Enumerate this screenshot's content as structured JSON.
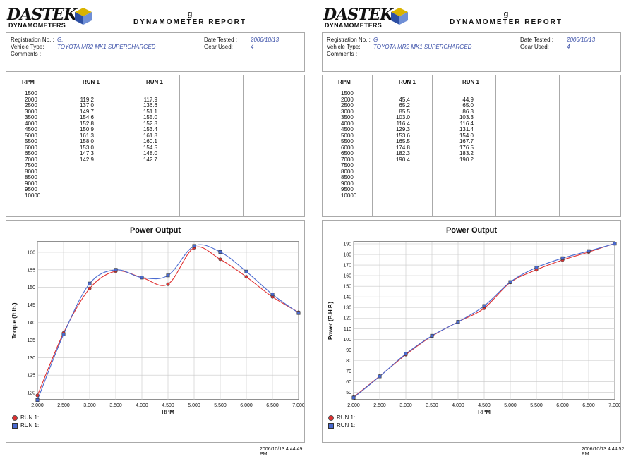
{
  "pages": [
    {
      "brand": {
        "word": "DASTEK",
        "sub": "DYNAMOMETERS"
      },
      "report": {
        "g": "g",
        "title": "DYNAMOMETER REPORT"
      },
      "info": {
        "registration_label": "Registration No. :",
        "registration_value": "G.",
        "vehicle_label": "Vehicle Type:",
        "vehicle_value": "TOYOTA MR2 MK1 SUPERCHARGED",
        "comments_label": "Comments :",
        "date_label": "Date Tested :",
        "date_value": "2006/10/13",
        "gear_label": "Gear Used:",
        "gear_value": "4"
      },
      "table": {
        "headers": [
          "RPM",
          "RUN 1",
          "RUN 1"
        ],
        "rpm": [
          "1500",
          "2000",
          "2500",
          "3000",
          "3500",
          "4000",
          "4500",
          "5000",
          "5500",
          "6000",
          "6500",
          "7000",
          "7500",
          "8000",
          "8500",
          "9000",
          "9500",
          "10000"
        ],
        "run1a": [
          "",
          "119.2",
          "137.0",
          "149.7",
          "154.6",
          "152.8",
          "150.9",
          "161.3",
          "158.0",
          "153.0",
          "147.3",
          "142.9"
        ],
        "run1b": [
          "",
          "117.9",
          "136.6",
          "151.1",
          "155.0",
          "152.8",
          "153.4",
          "161.8",
          "160.1",
          "154.5",
          "148.0",
          "142.7"
        ]
      },
      "chart_data": {
        "type": "line",
        "title": "Power Output",
        "xlabel": "RPM",
        "ylabel": "Torque (ft.lb.)",
        "x": [
          2000,
          2500,
          3000,
          3500,
          4000,
          4500,
          5000,
          5500,
          6000,
          6500,
          7000
        ],
        "x_tick_labels": [
          "2,000",
          "2,500",
          "3,000",
          "3,500",
          "4,000",
          "4,500",
          "5,000",
          "5,500",
          "6,000",
          "6,500",
          "7,000"
        ],
        "xlim": [
          2000,
          7000
        ],
        "ylim": [
          118,
          163
        ],
        "y_ticks": [
          120,
          125,
          130,
          135,
          140,
          145,
          150,
          155,
          160
        ],
        "grid": true,
        "legend": "bottom-left",
        "series": [
          {
            "name": "RUN 1:",
            "color": "#e03030",
            "marker": "circle",
            "values": [
              119.2,
              137.0,
              149.7,
              154.6,
              152.8,
              150.9,
              161.3,
              158.0,
              153.0,
              147.3,
              142.9
            ]
          },
          {
            "name": "RUN 1:",
            "color": "#4a6ad0",
            "marker": "square",
            "values": [
              117.9,
              136.6,
              151.1,
              155.0,
              152.8,
              153.4,
              161.8,
              160.1,
              154.5,
              148.0,
              142.7
            ]
          }
        ]
      },
      "timestamp": "2006/10/13 4:44:49 PM"
    },
    {
      "brand": {
        "word": "DASTEK",
        "sub": "DYNAMOMETERS"
      },
      "report": {
        "g": "g",
        "title": "DYNAMOMETER REPORT"
      },
      "info": {
        "registration_label": "Registration No. :",
        "registration_value": "G",
        "vehicle_label": "Vehicle Type:",
        "vehicle_value": "TOYOTA MR2 MK1 SUPERCHARGED",
        "comments_label": "Comments :",
        "date_label": "Date Tested :",
        "date_value": "2006/10/13",
        "gear_label": "Gear Used:",
        "gear_value": "4"
      },
      "table": {
        "headers": [
          "RPM",
          "RUN 1",
          "RUN 1"
        ],
        "rpm": [
          "1500",
          "2000",
          "2500",
          "3000",
          "3500",
          "4000",
          "4500",
          "5000",
          "5500",
          "6000",
          "6500",
          "7000",
          "7500",
          "8000",
          "8500",
          "9000",
          "9500",
          "10000"
        ],
        "run1a": [
          "",
          "45.4",
          "65.2",
          "85.5",
          "103.0",
          "116.4",
          "129.3",
          "153.6",
          "165.5",
          "174.8",
          "182.3",
          "190.4"
        ],
        "run1b": [
          "",
          "44.9",
          "65.0",
          "86.3",
          "103.3",
          "116.4",
          "131.4",
          "154.0",
          "167.7",
          "176.5",
          "183.2",
          "190.2"
        ]
      },
      "chart_data": {
        "type": "line",
        "title": "Power Output",
        "xlabel": "RPM",
        "ylabel": "Power (B.H.P.)",
        "x": [
          2000,
          2500,
          3000,
          3500,
          4000,
          4500,
          5000,
          5500,
          6000,
          6500,
          7000
        ],
        "x_tick_labels": [
          "2,000",
          "2,500",
          "3,000",
          "3,500",
          "4,000",
          "4,500",
          "5,000",
          "5,500",
          "6,000",
          "6,500",
          "7,000"
        ],
        "xlim": [
          2000,
          7000
        ],
        "ylim": [
          43,
          192
        ],
        "y_ticks": [
          50,
          60,
          70,
          80,
          90,
          100,
          110,
          120,
          130,
          140,
          150,
          160,
          170,
          180,
          190
        ],
        "grid": true,
        "legend": "bottom-left",
        "series": [
          {
            "name": "RUN 1:",
            "color": "#e03030",
            "marker": "circle",
            "values": [
              45.4,
              65.2,
              85.5,
              103.0,
              116.4,
              129.3,
              153.6,
              165.5,
              174.8,
              182.3,
              190.4
            ]
          },
          {
            "name": "RUN 1:",
            "color": "#4a6ad0",
            "marker": "square",
            "values": [
              44.9,
              65.0,
              86.3,
              103.3,
              116.4,
              131.4,
              154.0,
              167.7,
              176.5,
              183.2,
              190.2
            ]
          }
        ]
      },
      "timestamp": "2006/10/13 4:44:52 PM"
    }
  ]
}
